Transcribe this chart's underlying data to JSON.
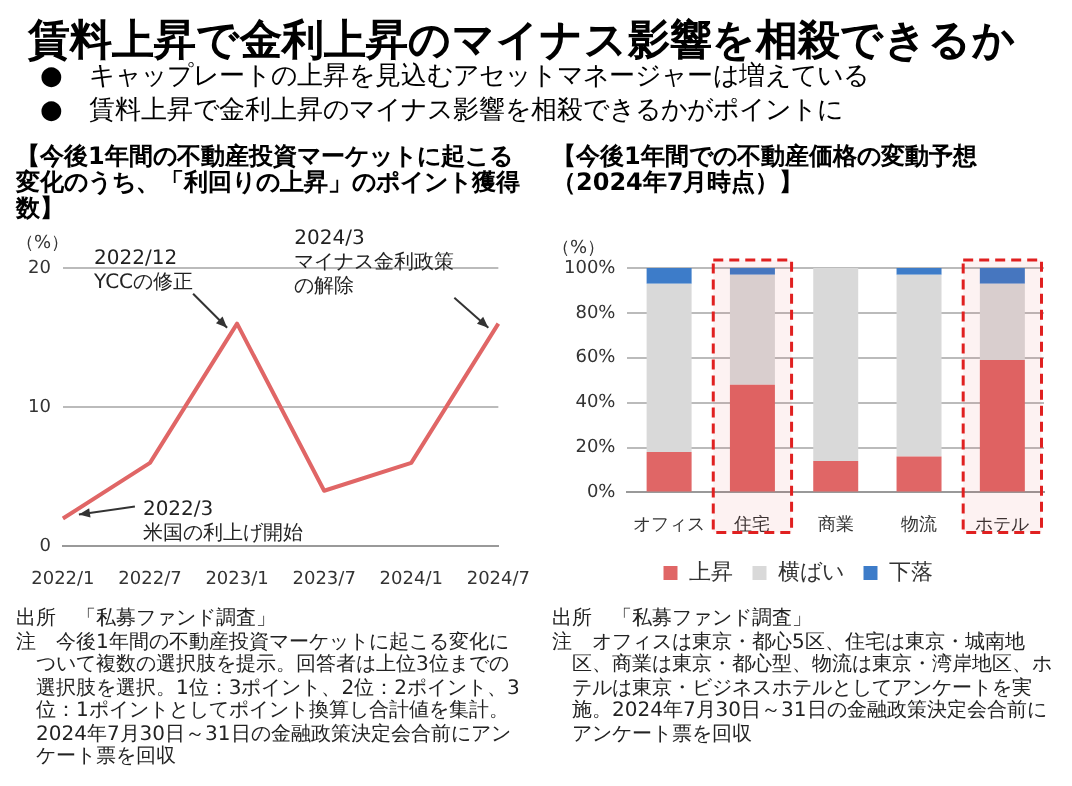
{
  "chart_data": [
    {
      "type": "other",
      "title": "賃料上昇で金利上昇のマイナス影響を相殺できるか",
      "annotations": [
        "●　キャップレートの上昇を見込むアセットマネージャーは増えている",
        "●　賃料上昇で金利上昇のマイナス影響を相殺できるかがポイントに"
      ]
    },
    {
      "type": "line",
      "title": "【今後1年間の不動産投資マーケットに起こる変化のうち、「利回りの上昇」のポイント獲得数】",
      "ylabel": "（%）",
      "categories": [
        "2022/1",
        "2022/7",
        "2023/1",
        "2023/7",
        "2024/1",
        "2024/7"
      ],
      "series": [
        {
          "color": "#e06666",
          "values": [
            2,
            6,
            16,
            4,
            6,
            16
          ]
        }
      ],
      "ylim": [
        0,
        20
      ],
      "yticks": [
        0,
        10,
        20
      ],
      "grid": "y",
      "legend": false,
      "marker": "none",
      "line_style": "solid",
      "annotations": [
        {
          "text": "2022/12\nYCCの修正",
          "x": "2023/1",
          "y": 16
        },
        {
          "text": "2024/3\nマイナス金利政策の解除",
          "x": "2024/7",
          "y": 16
        },
        {
          "text": "2022/3\n米国の利上げ開始",
          "x": "2022/1",
          "y": 2
        },
        "出所　「私募ファンド調査」",
        "注　今後1年間の不動産投資マーケットに起こる変化について複数の選択肢を提示。回答者は上位3位までの選択肢を選択。1位：3ポイント、2位：2ポイント、3位：1ポイントとしてポイント換算し合計値を集計。2024年7月30日～31日の金融政策決定会合前にアンケート票を回収"
      ]
    },
    {
      "type": "bar",
      "title": "【今後1年間での不動産価格の変動予想（2024年7月時点）】",
      "ylabel": "（%）",
      "categories": [
        "オフィス",
        "住宅",
        "商業",
        "物流",
        "ホテル"
      ],
      "stacked": true,
      "series": [
        {
          "name": "上昇",
          "color": "#e06666",
          "values": [
            18,
            48,
            14,
            16,
            59
          ]
        },
        {
          "name": "横ばい",
          "color": "#d9d9d9",
          "values": [
            75,
            49,
            86,
            81,
            34
          ]
        },
        {
          "name": "下落",
          "color": "#3d7cc9",
          "values": [
            7,
            3,
            0,
            3,
            7
          ]
        }
      ],
      "ylim": [
        0,
        100
      ],
      "yticks": [
        {
          "value": 0,
          "label": "0%"
        },
        {
          "value": 20,
          "label": "20%"
        },
        {
          "value": 40,
          "label": "40%"
        },
        {
          "value": 60,
          "label": "60%"
        },
        {
          "value": 80,
          "label": "80%"
        },
        {
          "value": 100,
          "label": "100%"
        }
      ],
      "grid": "y",
      "legend": "bottom",
      "bands": [
        {
          "axis": "x",
          "from": "住宅",
          "to": "住宅",
          "color": "#e02020"
        },
        {
          "axis": "x",
          "from": "ホテル",
          "to": "ホテル",
          "color": "#e02020"
        }
      ],
      "annotations": [
        "出所　「私募ファンド調査」",
        "注　オフィスは東京・都心5区、住宅は東京・城南地区、商業は東京・都心型、物流は東京・湾岸地区、ホテルは東京・ビジネスホテルとしてアンケートを実施。2024年7月30日～31日の金融政策決定会合前にアンケート票を回収"
      ]
    }
  ]
}
